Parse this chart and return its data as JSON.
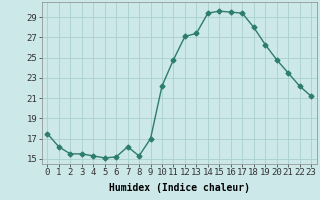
{
  "x": [
    0,
    1,
    2,
    3,
    4,
    5,
    6,
    7,
    8,
    9,
    10,
    11,
    12,
    13,
    14,
    15,
    16,
    17,
    18,
    19,
    20,
    21,
    22,
    23
  ],
  "y": [
    17.5,
    16.2,
    15.5,
    15.5,
    15.3,
    15.1,
    15.2,
    16.2,
    15.3,
    17.0,
    22.2,
    24.8,
    27.1,
    27.4,
    29.4,
    29.6,
    29.5,
    29.4,
    28.0,
    26.3,
    24.8,
    23.5,
    22.2,
    21.2
  ],
  "line_color": "#2d7d6d",
  "marker": "D",
  "markersize": 2.5,
  "linewidth": 1.0,
  "bg_color": "#cce8e8",
  "grid_color": "#aacfcf",
  "xlabel": "Humidex (Indice chaleur)",
  "ylim": [
    14.5,
    30.5
  ],
  "yticks": [
    15,
    17,
    19,
    21,
    23,
    25,
    27,
    29
  ],
  "xticks": [
    0,
    1,
    2,
    3,
    4,
    5,
    6,
    7,
    8,
    9,
    10,
    11,
    12,
    13,
    14,
    15,
    16,
    17,
    18,
    19,
    20,
    21,
    22,
    23
  ],
  "xlabel_fontsize": 7,
  "tick_fontsize": 6.5
}
